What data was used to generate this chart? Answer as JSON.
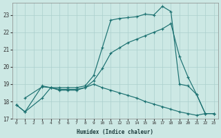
{
  "xlabel": "Humidex (Indice chaleur)",
  "bg_color": "#cce8e4",
  "grid_color": "#aacfcc",
  "line_color": "#1a7070",
  "xlim": [
    -0.5,
    23.5
  ],
  "ylim": [
    17.0,
    23.7
  ],
  "yticks": [
    17,
    18,
    19,
    20,
    21,
    22,
    23
  ],
  "xticks": [
    0,
    1,
    2,
    3,
    4,
    5,
    6,
    7,
    8,
    9,
    10,
    11,
    12,
    13,
    14,
    15,
    16,
    17,
    18,
    19,
    20,
    21,
    22,
    23
  ],
  "lines": [
    {
      "x": [
        0,
        1,
        3,
        4,
        5,
        6,
        7,
        8,
        9,
        10,
        11,
        12,
        13,
        14,
        15,
        16,
        17,
        18,
        19,
        20,
        21,
        22,
        23
      ],
      "y": [
        17.8,
        17.4,
        18.9,
        18.8,
        18.8,
        18.8,
        18.8,
        18.9,
        19.5,
        21.1,
        22.7,
        22.8,
        22.85,
        22.9,
        23.05,
        23.0,
        23.5,
        23.2,
        19.0,
        18.9,
        18.4,
        17.3,
        17.3
      ]
    },
    {
      "x": [
        0,
        1,
        3,
        4,
        5,
        6,
        7,
        8,
        9,
        10,
        11,
        12,
        13,
        14,
        15,
        16,
        17,
        18,
        19,
        20,
        21,
        22,
        23
      ],
      "y": [
        17.8,
        17.4,
        18.2,
        18.8,
        18.7,
        18.7,
        18.7,
        18.8,
        19.2,
        19.9,
        20.8,
        21.1,
        21.4,
        21.6,
        21.8,
        22.0,
        22.2,
        22.5,
        20.6,
        19.4,
        18.4,
        17.3,
        17.3
      ]
    },
    {
      "x": [
        1,
        3,
        4,
        5,
        6,
        7,
        8,
        9,
        10,
        11,
        12,
        13,
        14,
        15,
        16,
        17,
        18,
        19,
        20,
        21,
        22,
        23
      ],
      "y": [
        18.2,
        18.85,
        18.8,
        18.65,
        18.65,
        18.65,
        18.8,
        19.0,
        18.8,
        18.65,
        18.5,
        18.35,
        18.2,
        18.0,
        17.85,
        17.7,
        17.55,
        17.4,
        17.3,
        17.2,
        17.3,
        17.3
      ]
    }
  ]
}
